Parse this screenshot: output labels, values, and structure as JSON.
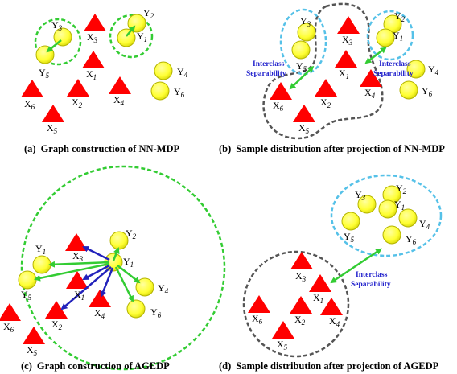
{
  "colors": {
    "point_fill": "#ffff33",
    "point_stroke": "#b3b300",
    "triangle_fill": "#ff0000",
    "green_circle": "#33cc33",
    "blue_circle": "#55c1e8",
    "gray_boundary": "#555555",
    "arrow_green": "#33cc33",
    "arrow_blue": "#2222bb",
    "label_blue": "#2222cc"
  },
  "panels": {
    "a": {
      "caption_tag": "(a)",
      "caption": "Graph construction of NN-MDP",
      "labels": {
        "y3": "Y",
        "y3s": "3",
        "x3": "X",
        "x3s": "3",
        "y2": "Y",
        "y2s": "2",
        "y1": "Y",
        "y1s": "1",
        "y5": "Y",
        "y5s": "5",
        "x1": "X",
        "x1s": "1",
        "y4": "Y",
        "y4s": "4",
        "x6": "X",
        "x6s": "6",
        "x2": "X",
        "x2s": "2",
        "x4": "X",
        "x4s": "4",
        "y6": "Y",
        "y6s": "6",
        "x5": "X",
        "x5s": "5"
      }
    },
    "b": {
      "caption_tag": "(b)",
      "caption": "Sample distribution after projection of  NN-MDP",
      "sep_left_1": "Interclass",
      "sep_left_2": "Separability",
      "sep_right_1": "Interclass",
      "sep_right_2": "Separability",
      "labels": {
        "y3": "Y",
        "y3s": "3",
        "x3": "X",
        "x3s": "3",
        "y2": "Y",
        "y2s": "2",
        "y1": "Y",
        "y1s": "1",
        "y5": "Y",
        "y5s": "5",
        "x1": "X",
        "x1s": "1",
        "y4": "Y",
        "y4s": "4",
        "x6": "X",
        "x6s": "6",
        "x2": "X",
        "x2s": "2",
        "x4": "X",
        "x4s": "4",
        "y6": "Y",
        "y6s": "6",
        "x5": "X",
        "x5s": "5"
      }
    },
    "c": {
      "caption_tag": "(c)",
      "caption": "Graph construction of AGEDP",
      "labels": {
        "y2": "Y",
        "y2s": "2",
        "y1l": "Y",
        "y1ls": "1",
        "x3": "X",
        "x3s": "3",
        "y1c": "Y",
        "y1cs": "1",
        "y5": "Y",
        "y5s": "5",
        "x1": "X",
        "x1s": "1",
        "y4": "Y",
        "y4s": "4",
        "x6": "X",
        "x6s": "6",
        "x2": "X",
        "x2s": "2",
        "x4": "X",
        "x4s": "4",
        "y6": "Y",
        "y6s": "6",
        "x5": "X",
        "x5s": "5"
      }
    },
    "d": {
      "caption_tag": "(d)",
      "caption": "Sample distribution after projection of  AGEDP",
      "sep_1": "Interclass",
      "sep_2": "Separability",
      "labels": {
        "y3": "Y",
        "y3s": "3",
        "y2": "Y",
        "y2s": "2",
        "y1": "Y",
        "y1s": "1",
        "y5": "Y",
        "y5s": "5",
        "y4": "Y",
        "y4s": "4",
        "y6": "Y",
        "y6s": "6",
        "x3": "X",
        "x3s": "3",
        "x1": "X",
        "x1s": "1",
        "x6": "X",
        "x6s": "6",
        "x2": "X",
        "x2s": "2",
        "x4": "X",
        "x4s": "4",
        "x5": "X",
        "x5s": "5"
      }
    }
  }
}
